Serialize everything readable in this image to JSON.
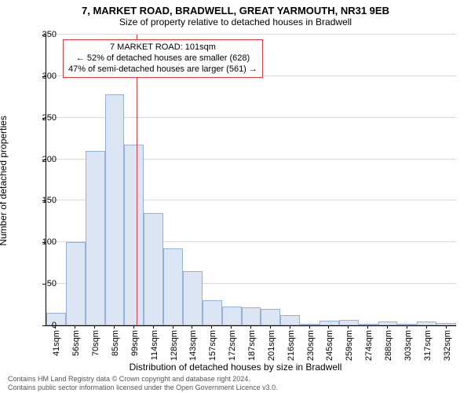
{
  "title": {
    "main": "7, MARKET ROAD, BRADWELL, GREAT YARMOUTH, NR31 9EB",
    "sub": "Size of property relative to detached houses in Bradwell"
  },
  "axes": {
    "y_label": "Number of detached properties",
    "x_label": "Distribution of detached houses by size in Bradwell",
    "y_ticks": [
      0,
      50,
      100,
      150,
      200,
      250,
      300,
      350
    ],
    "ylim": [
      0,
      350
    ]
  },
  "annotation": {
    "line1": "7 MARKET ROAD: 101sqm",
    "line2": "← 52% of detached houses are smaller (628)",
    "line3": "47% of semi-detached houses are larger (561) →",
    "border_color": "#d94040"
  },
  "reference_line": {
    "x_value": 101,
    "color": "#d94040"
  },
  "chart": {
    "type": "histogram",
    "bar_fill": "#dbe5f4",
    "bar_border": "#97b0d8",
    "background": "#ffffff",
    "grid_color": "#d9d9d9",
    "x_start": 34,
    "bin_width_sqm": 14.5,
    "bar_values": [
      15,
      100,
      210,
      278,
      218,
      135,
      93,
      65,
      30,
      23,
      22,
      20,
      12,
      2,
      6,
      7,
      2,
      5,
      2,
      5,
      3
    ],
    "x_tick_labels": [
      "41sqm",
      "56sqm",
      "70sqm",
      "85sqm",
      "99sqm",
      "114sqm",
      "128sqm",
      "143sqm",
      "157sqm",
      "172sqm",
      "187sqm",
      "201sqm",
      "216sqm",
      "230sqm",
      "245sqm",
      "259sqm",
      "274sqm",
      "288sqm",
      "303sqm",
      "317sqm",
      "332sqm"
    ]
  },
  "attribution": {
    "line1": "Contains HM Land Registry data © Crown copyright and database right 2024.",
    "line2": "Contains public sector information licensed under the Open Government Licence v3.0."
  }
}
